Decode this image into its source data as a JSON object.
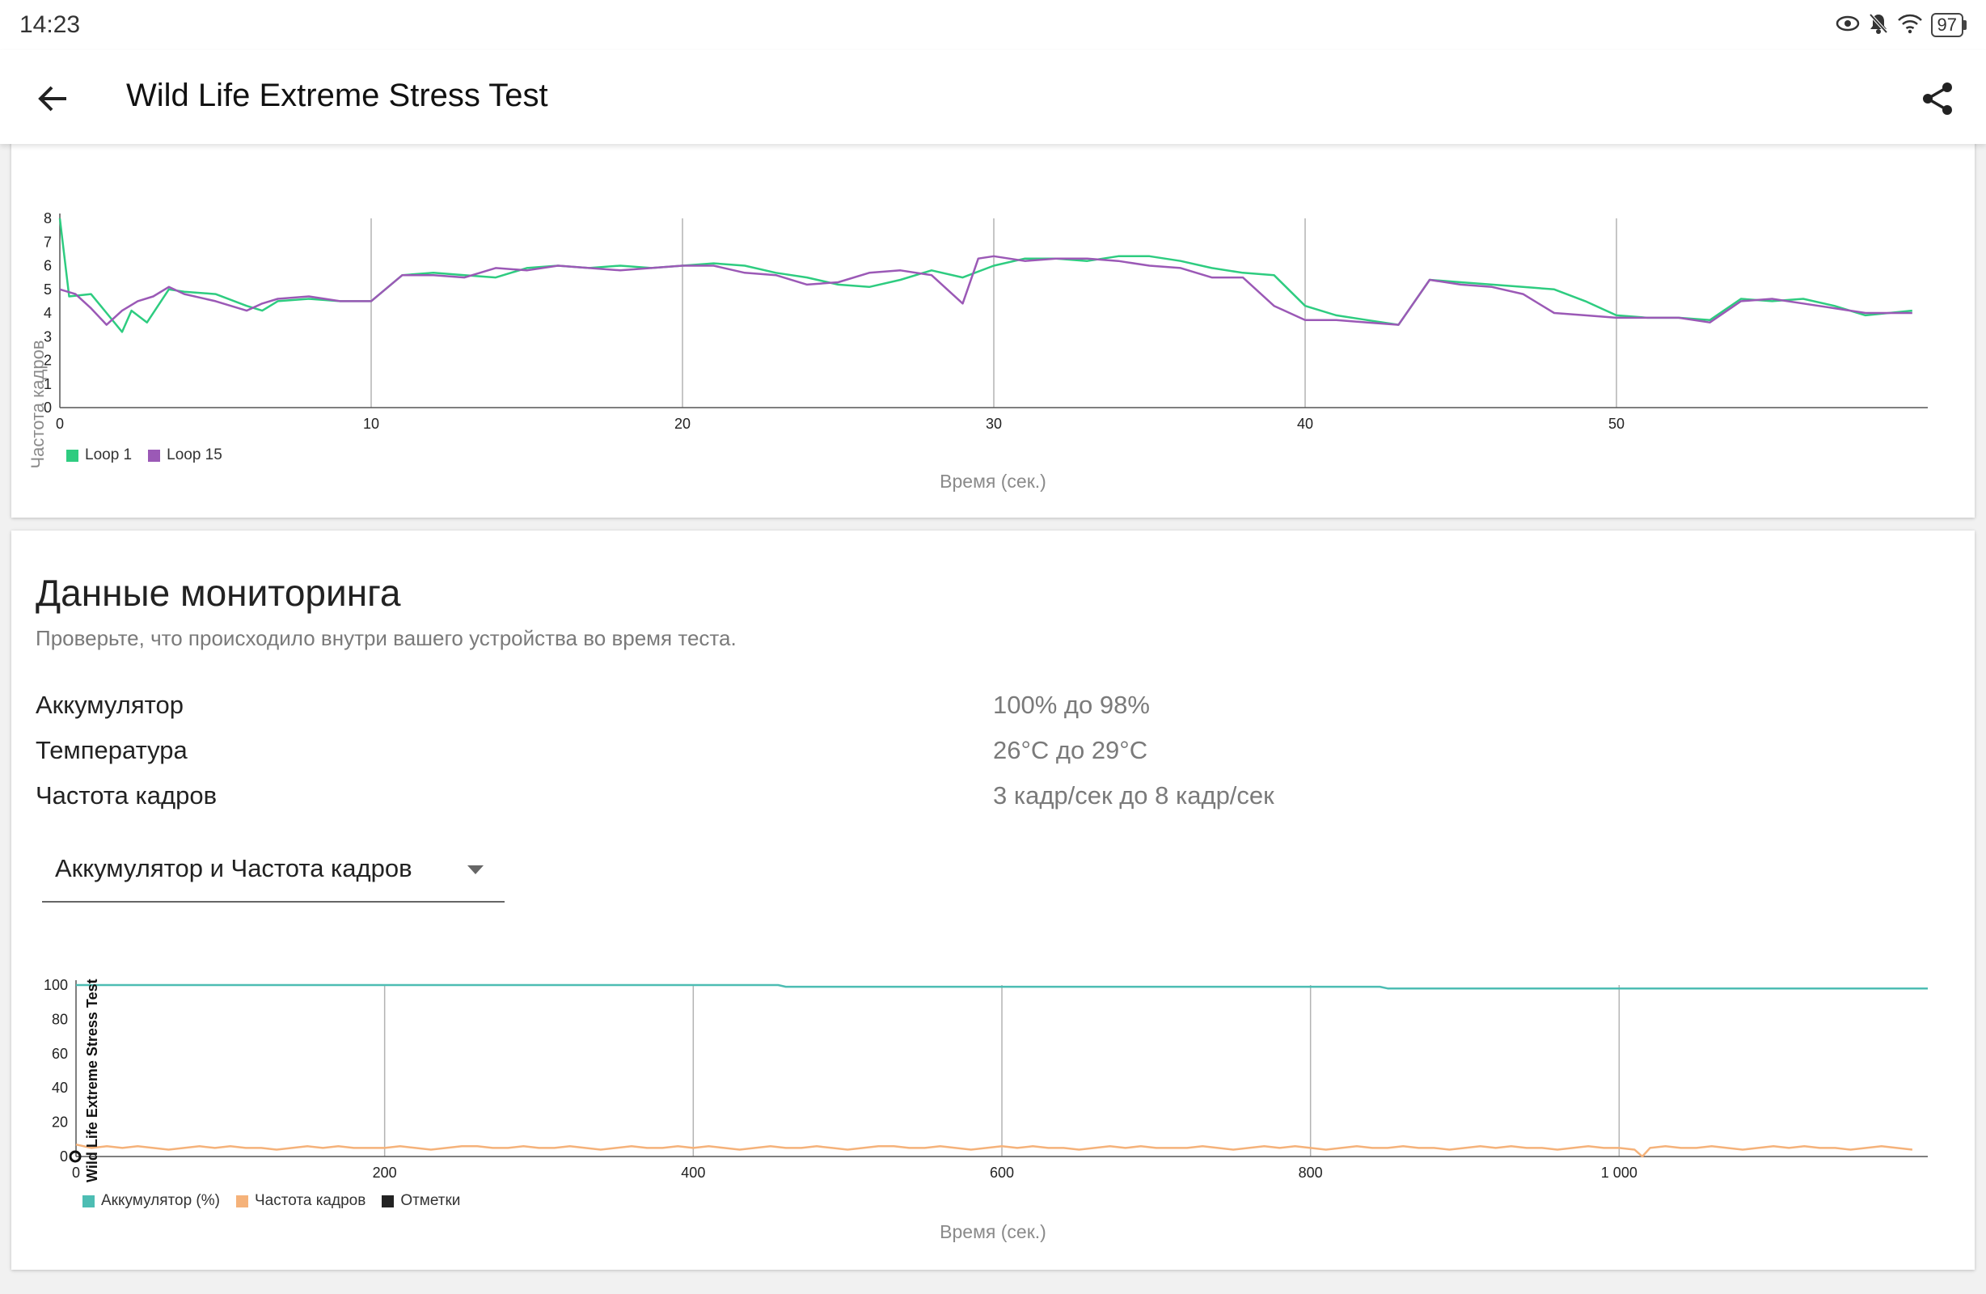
{
  "status_bar": {
    "time": "14:23",
    "battery": "97"
  },
  "app_bar": {
    "title": "Wild Life Extreme Stress Test"
  },
  "fps_chart": {
    "ylabel": "Частота кадров",
    "xlabel": "Время (сек.)",
    "legend": [
      {
        "label": "Loop 1",
        "color": "#2ecc80"
      },
      {
        "label": "Loop 15",
        "color": "#9b59b6"
      }
    ]
  },
  "monitoring": {
    "title": "Данные мониторинга",
    "subtitle": "Проверьте, что происходило внутри вашего устройства во время теста.",
    "stats": [
      {
        "label": "Аккумулятор",
        "value": "100% до 98%"
      },
      {
        "label": "Температура",
        "value": "26°C до 29°C"
      },
      {
        "label": "Частота кадров",
        "value": "3 кадр/сек до 8 кадр/сек"
      }
    ],
    "dropdown": {
      "selected": "Аккумулятор и Частота кадров"
    }
  },
  "monitor_chart": {
    "ylabel": "Wild Life Extreme Stress Test",
    "xlabel": "Время (сек.)",
    "legend": [
      {
        "label": "Аккумулятор (%)",
        "color": "#4dbdb3"
      },
      {
        "label": "Частота кадров",
        "color": "#f5b27a"
      },
      {
        "label": "Отметки",
        "color": "#222222"
      }
    ]
  },
  "chart_data": [
    {
      "type": "line",
      "title": "",
      "xlabel": "Время (сек.)",
      "ylabel": "Частота кадров",
      "xlim": [
        0,
        60
      ],
      "ylim": [
        0,
        8
      ],
      "xticks": [
        0,
        10,
        20,
        30,
        40,
        50
      ],
      "yticks": [
        0,
        1,
        2,
        3,
        4,
        5,
        6,
        7,
        8
      ],
      "grid": "vertical",
      "legend_position": "bottom-left",
      "series": [
        {
          "name": "Loop 1",
          "color": "#2ecc80",
          "x": [
            0,
            0.3,
            1,
            1.5,
            2,
            2.3,
            2.8,
            3.5,
            4,
            5,
            6,
            6.5,
            7,
            8,
            9,
            10,
            11,
            12,
            13,
            14,
            15,
            16,
            17,
            18,
            19,
            20,
            21,
            22,
            23,
            24,
            25,
            26,
            27,
            28,
            29,
            30,
            31,
            32,
            33,
            34,
            35,
            36,
            37,
            38,
            39,
            40,
            41,
            42,
            43,
            44,
            45,
            46,
            47,
            48,
            49,
            50,
            51,
            52,
            53,
            54,
            55,
            56,
            57,
            58,
            59.5
          ],
          "values": [
            8,
            4.7,
            4.8,
            4,
            3.2,
            4.1,
            3.6,
            5,
            4.9,
            4.8,
            4.3,
            4.1,
            4.5,
            4.6,
            4.5,
            4.5,
            5.6,
            5.7,
            5.6,
            5.5,
            5.9,
            6,
            5.9,
            6,
            5.9,
            6,
            6.1,
            6,
            5.7,
            5.5,
            5.2,
            5.1,
            5.4,
            5.8,
            5.5,
            6,
            6.3,
            6.3,
            6.2,
            6.4,
            6.4,
            6.2,
            5.9,
            5.7,
            5.6,
            4.3,
            3.9,
            3.7,
            3.5,
            5.4,
            5.3,
            5.2,
            5.1,
            5,
            4.5,
            3.9,
            3.8,
            3.8,
            3.7,
            4.6,
            4.5,
            4.6,
            4.3,
            3.9,
            4.1
          ]
        },
        {
          "name": "Loop 15",
          "color": "#9b59b6",
          "x": [
            0,
            0.5,
            1,
            1.5,
            2,
            2.5,
            3,
            3.5,
            4,
            5,
            6,
            6.5,
            7,
            8,
            9,
            10,
            11,
            12,
            13,
            14,
            15,
            16,
            17,
            18,
            19,
            20,
            21,
            22,
            23,
            24,
            25,
            26,
            27,
            28,
            29,
            29.5,
            30,
            31,
            32,
            33,
            34,
            35,
            36,
            37,
            38,
            39,
            40,
            41,
            42,
            43,
            44,
            45,
            46,
            47,
            48,
            49,
            50,
            51,
            52,
            53,
            54,
            55,
            56,
            57,
            58,
            59.5
          ],
          "values": [
            5,
            4.8,
            4.2,
            3.5,
            4.1,
            4.5,
            4.7,
            5.1,
            4.8,
            4.5,
            4.1,
            4.4,
            4.6,
            4.7,
            4.5,
            4.5,
            5.6,
            5.6,
            5.5,
            5.9,
            5.8,
            6,
            5.9,
            5.8,
            5.9,
            6,
            6,
            5.7,
            5.6,
            5.2,
            5.3,
            5.7,
            5.8,
            5.6,
            4.4,
            6.3,
            6.4,
            6.2,
            6.3,
            6.3,
            6.2,
            6,
            5.9,
            5.5,
            5.5,
            4.3,
            3.7,
            3.7,
            3.6,
            3.5,
            5.4,
            5.2,
            5.1,
            4.8,
            4,
            3.9,
            3.8,
            3.8,
            3.8,
            3.6,
            4.5,
            4.6,
            4.4,
            4.2,
            4,
            4
          ]
        }
      ]
    },
    {
      "type": "line",
      "title": "",
      "xlabel": "Время (сек.)",
      "ylabel": "Wild Life Extreme Stress Test",
      "xlim": [
        0,
        1200
      ],
      "ylim": [
        0,
        100
      ],
      "xticks": [
        0,
        200,
        400,
        600,
        800,
        1000
      ],
      "xtick_labels": [
        "0",
        "200",
        "400",
        "600",
        "800",
        "1 000"
      ],
      "yticks": [
        0,
        20,
        40,
        60,
        80,
        100
      ],
      "grid": "vertical",
      "legend_position": "bottom-left",
      "series": [
        {
          "name": "Аккумулятор (%)",
          "color": "#4dbdb3",
          "x": [
            0,
            455,
            460,
            845,
            850,
            1200
          ],
          "values": [
            100,
            100,
            99,
            99,
            98,
            98
          ]
        },
        {
          "name": "Частота кадров",
          "color": "#f5b27a",
          "x": [
            0,
            10,
            20,
            30,
            40,
            50,
            60,
            70,
            80,
            90,
            100,
            110,
            120,
            130,
            140,
            150,
            160,
            170,
            180,
            190,
            200,
            210,
            220,
            230,
            240,
            250,
            260,
            270,
            280,
            290,
            300,
            310,
            320,
            330,
            340,
            350,
            360,
            370,
            380,
            390,
            400,
            410,
            420,
            430,
            440,
            450,
            460,
            470,
            480,
            490,
            500,
            510,
            520,
            530,
            540,
            550,
            560,
            570,
            580,
            590,
            600,
            610,
            620,
            630,
            640,
            650,
            660,
            670,
            680,
            690,
            700,
            710,
            720,
            730,
            740,
            750,
            760,
            770,
            780,
            790,
            800,
            810,
            820,
            830,
            840,
            850,
            860,
            870,
            880,
            890,
            900,
            910,
            920,
            930,
            940,
            950,
            960,
            970,
            980,
            990,
            1000,
            1010,
            1015,
            1020,
            1030,
            1040,
            1050,
            1060,
            1070,
            1080,
            1090,
            1100,
            1110,
            1120,
            1130,
            1140,
            1150,
            1160,
            1170,
            1180,
            1190
          ],
          "values": [
            7,
            5,
            6,
            5,
            6,
            5,
            4,
            5,
            6,
            5,
            6,
            5,
            5,
            4,
            5,
            6,
            5,
            6,
            5,
            5,
            5,
            6,
            5,
            4,
            5,
            6,
            6,
            5,
            5,
            6,
            5,
            5,
            6,
            5,
            4,
            5,
            6,
            5,
            5,
            6,
            5,
            6,
            5,
            4,
            5,
            6,
            5,
            5,
            6,
            5,
            4,
            5,
            6,
            6,
            5,
            5,
            6,
            5,
            4,
            5,
            6,
            5,
            6,
            5,
            5,
            4,
            5,
            6,
            5,
            6,
            5,
            5,
            5,
            6,
            5,
            4,
            5,
            6,
            5,
            6,
            5,
            4,
            5,
            6,
            5,
            5,
            6,
            5,
            5,
            4,
            5,
            6,
            5,
            6,
            5,
            5,
            4,
            5,
            6,
            5,
            5,
            4,
            0,
            5,
            6,
            5,
            5,
            6,
            5,
            4,
            5,
            6,
            5,
            6,
            5,
            5,
            4,
            5,
            6,
            5,
            4
          ]
        }
      ]
    }
  ]
}
